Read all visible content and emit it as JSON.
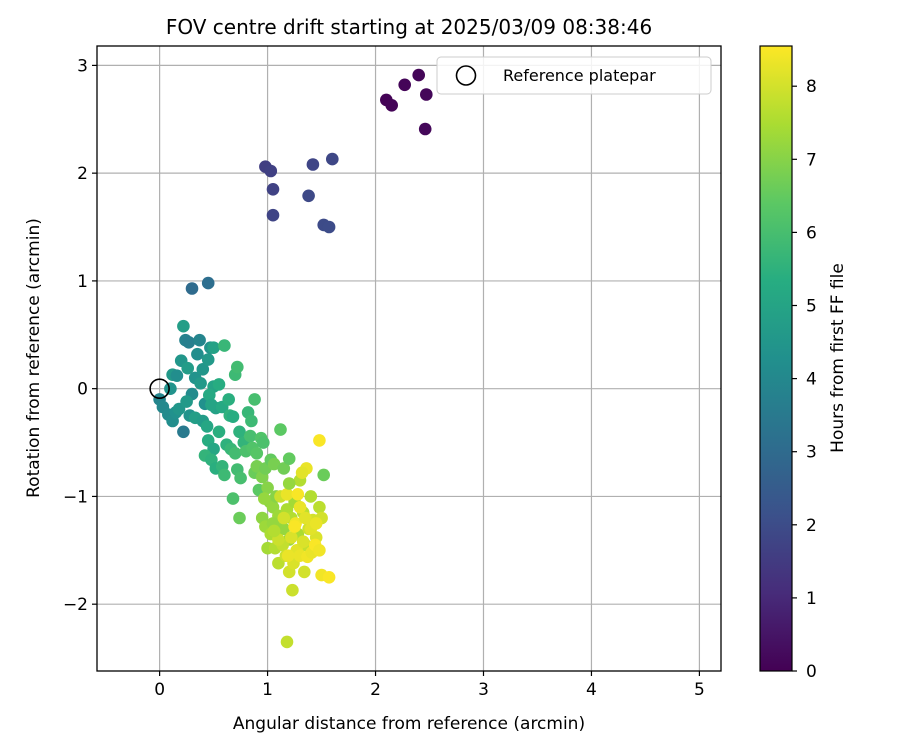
{
  "chart_data": {
    "type": "scatter",
    "title": "FOV centre drift starting at 2025/03/09 08:38:46",
    "xlabel": "Angular distance from reference (arcmin)",
    "ylabel": "Rotation from reference (arcmin)",
    "xlim": [
      -0.58,
      5.2
    ],
    "ylim": [
      -2.62,
      3.18
    ],
    "xticks": [
      0,
      1,
      2,
      3,
      4,
      5
    ],
    "yticks": [
      -2,
      -1,
      0,
      1,
      2,
      3
    ],
    "grid": true,
    "legend": {
      "position": "upper-right",
      "entries": [
        "Reference platepar"
      ]
    },
    "reference_point": {
      "x": 0,
      "y": 0
    },
    "colorbar": {
      "label": "Hours from first FF file",
      "range": [
        0,
        8.55
      ],
      "ticks": [
        0,
        1,
        2,
        3,
        4,
        5,
        6,
        7,
        8
      ],
      "colormap": "viridis"
    },
    "points": [
      [
        2.1,
        2.68,
        0.05
      ],
      [
        2.15,
        2.63,
        0.08
      ],
      [
        2.27,
        2.82,
        0.1
      ],
      [
        2.4,
        2.91,
        0.12
      ],
      [
        2.47,
        2.73,
        0.15
      ],
      [
        2.46,
        2.41,
        0.18
      ],
      [
        0.98,
        2.06,
        1.6
      ],
      [
        1.03,
        2.02,
        1.65
      ],
      [
        1.05,
        1.85,
        1.7
      ],
      [
        1.05,
        1.61,
        1.75
      ],
      [
        1.42,
        2.08,
        1.8
      ],
      [
        1.6,
        2.13,
        1.85
      ],
      [
        1.38,
        1.79,
        1.9
      ],
      [
        1.52,
        1.52,
        1.95
      ],
      [
        1.57,
        1.5,
        2.0
      ],
      [
        0.3,
        0.93,
        3.0
      ],
      [
        0.45,
        0.98,
        3.1
      ],
      [
        0.0,
        -0.1,
        3.9
      ],
      [
        0.03,
        -0.17,
        4.0
      ],
      [
        0.08,
        -0.24,
        4.1
      ],
      [
        0.12,
        -0.3,
        4.2
      ],
      [
        0.15,
        -0.22,
        4.3
      ],
      [
        0.22,
        -0.4,
        3.5
      ],
      [
        0.24,
        0.45,
        3.8
      ],
      [
        0.27,
        0.43,
        3.7
      ],
      [
        0.1,
        0.0,
        4.4
      ],
      [
        0.12,
        0.13,
        4.6
      ],
      [
        0.16,
        0.12,
        4.2
      ],
      [
        0.2,
        0.26,
        4.5
      ],
      [
        0.22,
        0.58,
        4.8
      ],
      [
        0.26,
        0.19,
        4.7
      ],
      [
        0.3,
        -0.05,
        4.1
      ],
      [
        0.33,
        0.1,
        4.4
      ],
      [
        0.35,
        0.32,
        4.2
      ],
      [
        0.37,
        0.45,
        3.9
      ],
      [
        0.38,
        0.05,
        4.6
      ],
      [
        0.4,
        0.18,
        4.5
      ],
      [
        0.42,
        -0.14,
        4.3
      ],
      [
        0.45,
        0.27,
        4.6
      ],
      [
        0.47,
        0.38,
        4.4
      ],
      [
        0.5,
        0.02,
        5.0
      ],
      [
        0.52,
        -0.18,
        4.9
      ],
      [
        0.28,
        -0.25,
        4.4
      ],
      [
        0.18,
        -0.19,
        4.5
      ],
      [
        0.25,
        -0.12,
        4.6
      ],
      [
        0.33,
        -0.27,
        4.8
      ],
      [
        0.4,
        -0.3,
        4.7
      ],
      [
        0.44,
        -0.35,
        5.1
      ],
      [
        0.46,
        -0.06,
        5.2
      ],
      [
        0.48,
        -0.15,
        5.0
      ],
      [
        0.5,
        0.38,
        4.9
      ],
      [
        0.55,
        0.04,
        5.3
      ],
      [
        0.58,
        -0.17,
        5.2
      ],
      [
        0.6,
        0.4,
        5.7
      ],
      [
        0.64,
        -0.1,
        5.4
      ],
      [
        0.65,
        -0.25,
        5.5
      ],
      [
        0.68,
        -0.26,
        5.3
      ],
      [
        0.7,
        0.13,
        5.8
      ],
      [
        0.72,
        0.2,
        5.9
      ],
      [
        0.74,
        -0.4,
        5.5
      ],
      [
        0.78,
        -0.5,
        5.6
      ],
      [
        0.82,
        -0.22,
        5.7
      ],
      [
        0.85,
        -0.3,
        5.8
      ],
      [
        0.88,
        -0.1,
        6.0
      ],
      [
        0.55,
        -0.4,
        5.4
      ],
      [
        0.45,
        -0.48,
        5.3
      ],
      [
        0.5,
        -0.56,
        5.1
      ],
      [
        0.42,
        -0.62,
        5.6
      ],
      [
        0.48,
        -0.66,
        5.5
      ],
      [
        0.52,
        -0.74,
        5.4
      ],
      [
        0.58,
        -0.72,
        5.6
      ],
      [
        0.6,
        -0.8,
        5.8
      ],
      [
        0.62,
        -0.52,
        5.5
      ],
      [
        0.66,
        -0.56,
        5.7
      ],
      [
        0.7,
        -0.6,
        5.9
      ],
      [
        0.72,
        -0.75,
        5.9
      ],
      [
        0.75,
        -0.83,
        6.0
      ],
      [
        0.8,
        -0.58,
        6.1
      ],
      [
        0.84,
        -0.44,
        6.0
      ],
      [
        0.86,
        -0.55,
        6.2
      ],
      [
        0.9,
        -0.6,
        6.3
      ],
      [
        0.94,
        -0.46,
        6.2
      ],
      [
        0.96,
        -0.5,
        6.1
      ],
      [
        0.68,
        -1.02,
        6.1
      ],
      [
        0.74,
        -1.2,
        6.6
      ],
      [
        0.92,
        -0.94,
        6.4
      ],
      [
        0.88,
        -0.78,
        6.6
      ],
      [
        0.9,
        -0.72,
        6.8
      ],
      [
        0.95,
        -0.82,
        6.9
      ],
      [
        0.98,
        -0.74,
        6.7
      ],
      [
        1.0,
        -0.92,
        7.0
      ],
      [
        1.03,
        -0.66,
        6.5
      ],
      [
        1.06,
        -0.7,
        6.8
      ],
      [
        1.12,
        -0.38,
        6.4
      ],
      [
        1.15,
        -0.74,
        6.7
      ],
      [
        1.2,
        -0.65,
        6.5
      ],
      [
        1.02,
        -1.05,
        7.1
      ],
      [
        1.05,
        -1.1,
        7.2
      ],
      [
        1.08,
        -1.0,
        7.0
      ],
      [
        1.1,
        -1.18,
        7.3
      ],
      [
        1.12,
        -1.25,
        7.4
      ],
      [
        1.15,
        -1.3,
        7.2
      ],
      [
        1.18,
        -1.12,
        7.5
      ],
      [
        1.2,
        -1.4,
        7.3
      ],
      [
        1.22,
        -1.2,
        7.6
      ],
      [
        1.25,
        -1.05,
        7.4
      ],
      [
        1.28,
        -1.35,
        7.5
      ],
      [
        1.3,
        -0.85,
        7.6
      ],
      [
        1.33,
        -1.15,
        7.7
      ],
      [
        1.35,
        -1.45,
        7.8
      ],
      [
        1.38,
        -1.3,
        7.9
      ],
      [
        1.4,
        -1.0,
        7.6
      ],
      [
        1.42,
        -1.22,
        8.0
      ],
      [
        1.45,
        -1.38,
        8.1
      ],
      [
        1.48,
        -1.1,
        7.7
      ],
      [
        1.5,
        -1.2,
        8.0
      ],
      [
        1.52,
        -0.8,
        6.6
      ],
      [
        1.48,
        -0.48,
        8.5
      ],
      [
        1.36,
        -0.74,
        8.3
      ],
      [
        1.32,
        -0.78,
        8.2
      ],
      [
        0.95,
        -1.2,
        7.1
      ],
      [
        0.98,
        -1.28,
        7.3
      ],
      [
        1.0,
        -1.48,
        7.4
      ],
      [
        1.03,
        -1.35,
        7.5
      ],
      [
        1.07,
        -1.48,
        7.6
      ],
      [
        1.1,
        -1.62,
        7.7
      ],
      [
        1.14,
        -1.45,
        7.8
      ],
      [
        1.17,
        -1.55,
        7.9
      ],
      [
        1.2,
        -1.7,
        8.0
      ],
      [
        1.24,
        -1.62,
        8.1
      ],
      [
        1.27,
        -1.5,
        8.2
      ],
      [
        1.3,
        -1.55,
        8.3
      ],
      [
        1.34,
        -1.7,
        8.0
      ],
      [
        1.37,
        -1.56,
        8.4
      ],
      [
        1.41,
        -1.52,
        8.3
      ],
      [
        1.44,
        -1.45,
        8.5
      ],
      [
        1.5,
        -1.73,
        8.4
      ],
      [
        1.57,
        -1.75,
        8.5
      ],
      [
        1.48,
        -1.5,
        8.4
      ],
      [
        1.23,
        -1.87,
        7.9
      ],
      [
        1.18,
        -2.35,
        7.8
      ],
      [
        1.05,
        -1.25,
        7.2
      ],
      [
        1.12,
        -1.0,
        7.9
      ],
      [
        1.18,
        -0.98,
        8.3
      ],
      [
        1.26,
        -1.25,
        8.4
      ],
      [
        1.28,
        -0.98,
        8.5
      ],
      [
        1.3,
        -1.1,
        8.3
      ],
      [
        1.35,
        -1.2,
        8.2
      ],
      [
        1.22,
        -1.38,
        8.1
      ],
      [
        1.15,
        -1.2,
        8.0
      ],
      [
        1.1,
        -1.4,
        7.9
      ],
      [
        1.33,
        -1.42,
        8.1
      ],
      [
        1.4,
        -1.3,
        8.2
      ],
      [
        1.45,
        -1.25,
        8.3
      ],
      [
        1.06,
        -1.32,
        7.6
      ],
      [
        0.97,
        -1.02,
        7.2
      ],
      [
        1.2,
        -0.88,
        7.2
      ],
      [
        1.25,
        -1.28,
        8.5
      ],
      [
        1.19,
        -1.55,
        8.3
      ]
    ]
  }
}
